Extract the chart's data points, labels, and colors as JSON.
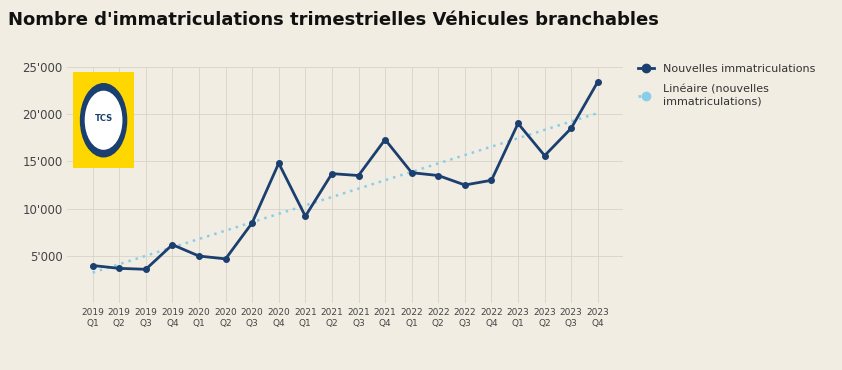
{
  "title": "Nombre d'immatriculations trimestrielles Véhicules branchables",
  "categories": [
    "2019\nQ1",
    "2019\nQ2",
    "2019\nQ3",
    "2019\nQ4",
    "2020\nQ1",
    "2020\nQ2",
    "2020\nQ3",
    "2020\nQ4",
    "2021\nQ1",
    "2021\nQ2",
    "2021\nQ3",
    "2021\nQ4",
    "2022\nQ1",
    "2022\nQ2",
    "2022\nQ3",
    "2022\nQ4",
    "2023\nQ1",
    "2023\nQ2",
    "2023\nQ3",
    "2023\nQ4"
  ],
  "values": [
    4000,
    3700,
    3600,
    6200,
    5000,
    4700,
    8500,
    14800,
    9200,
    13700,
    13500,
    17300,
    13800,
    13500,
    12500,
    13000,
    19000,
    15600,
    18500,
    23400
  ],
  "line_color": "#1b3f6e",
  "trend_color": "#87ceeb",
  "background_color": "#f2ede3",
  "title_fontsize": 13,
  "legend_label_line": "Nouvelles immatriculations",
  "legend_label_trend": "Linéaire (nouvelles\nimmatriculations)",
  "ylim": [
    0,
    25000
  ],
  "yticks": [
    0,
    5000,
    10000,
    15000,
    20000,
    25000
  ],
  "ytick_labels": [
    "",
    "5'000",
    "10'000",
    "15'000",
    "20'000",
    "25'000"
  ],
  "logo_color": "#FFD700"
}
